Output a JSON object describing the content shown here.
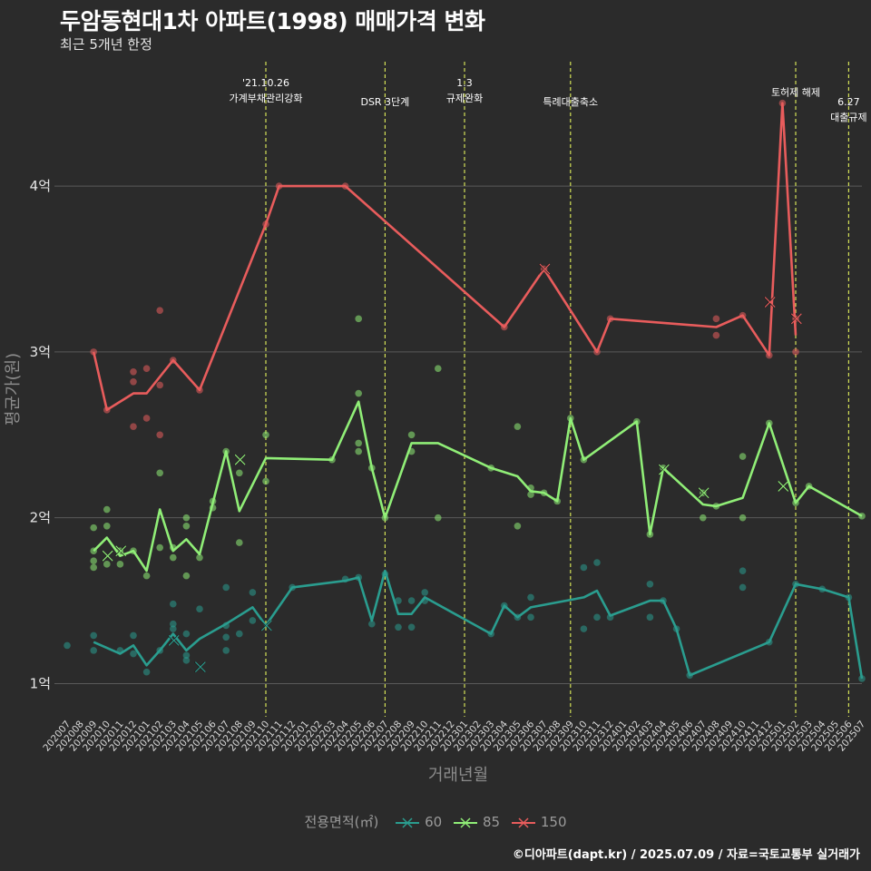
{
  "title": "두암동현대1차 아파트(1998) 매매가격 변화",
  "subtitle": "최근 5개년 한정",
  "caption": "©디아파트(dapt.kr) / 2025.07.09 / 자료=국토교통부 실거래가",
  "colors": {
    "background": "#2b2b2b",
    "grid": "#5a5a5a",
    "vline": "#d4e157",
    "s60": "#2a9d8f",
    "s85": "#90ee77",
    "s150": "#e85c5c"
  },
  "legend": {
    "title": "전용면적(㎡)",
    "items": [
      {
        "label": "60",
        "color": "#2a9d8f"
      },
      {
        "label": "85",
        "color": "#90ee77"
      },
      {
        "label": "150",
        "color": "#e85c5c"
      }
    ]
  },
  "chart_data": {
    "type": "line",
    "xlabel": "거래년월",
    "ylabel": "평균가(원)",
    "x_categories": [
      "202007",
      "202008",
      "202009",
      "202010",
      "202011",
      "202012",
      "202101",
      "202102",
      "202103",
      "202104",
      "202105",
      "202106",
      "202107",
      "202108",
      "202109",
      "202110",
      "202111",
      "202112",
      "202201",
      "202202",
      "202203",
      "202204",
      "202205",
      "202206",
      "202207",
      "202208",
      "202209",
      "202210",
      "202211",
      "202212",
      "202301",
      "202302",
      "202303",
      "202304",
      "202305",
      "202306",
      "202307",
      "202308",
      "202309",
      "202310",
      "202311",
      "202312",
      "202401",
      "202402",
      "202403",
      "202404",
      "202405",
      "202406",
      "202407",
      "202408",
      "202409",
      "202410",
      "202411",
      "202412",
      "202501",
      "202502",
      "202503",
      "202504",
      "202505",
      "202506",
      "202507"
    ],
    "y_ticks": [
      {
        "v": 1,
        "label": "1억"
      },
      {
        "v": 2,
        "label": "2억"
      },
      {
        "v": 3,
        "label": "3억"
      },
      {
        "v": 4,
        "label": "4억"
      }
    ],
    "ylim": [
      0.8,
      4.75
    ],
    "grid": true,
    "legend_position": "bottom",
    "events": [
      {
        "x": "202110",
        "lines": [
          "'21.10.26",
          "가계부채관리강화"
        ],
        "level": 0
      },
      {
        "x": "202207",
        "lines": [
          "DSR 3단계"
        ],
        "level": 1
      },
      {
        "x": "202301",
        "lines": [
          "1.3",
          "규제완화"
        ],
        "level": 0
      },
      {
        "x": "202309",
        "lines": [
          "특례대출축소"
        ],
        "level": 1
      },
      {
        "x": "202502",
        "lines": [
          "토허제 해제"
        ],
        "level": 0.5
      },
      {
        "x": "202506",
        "lines": [
          "6.27",
          "대출규제"
        ],
        "level": 1
      }
    ],
    "series": [
      {
        "name": "60",
        "color": "#2a9d8f",
        "line": [
          [
            "202009",
            1.25
          ],
          [
            "202011",
            1.18
          ],
          [
            "202012",
            1.23
          ],
          [
            "202101",
            1.11
          ],
          [
            "202102",
            1.2
          ],
          [
            "202103",
            1.3
          ],
          [
            "202104",
            1.2
          ],
          [
            "202105",
            1.27
          ],
          [
            "202107",
            1.36
          ],
          [
            "202109",
            1.46
          ],
          [
            "202110",
            1.35
          ],
          [
            "202112",
            1.58
          ],
          [
            "202204",
            1.62
          ],
          [
            "202205",
            1.64
          ],
          [
            "202206",
            1.38
          ],
          [
            "202207",
            1.68
          ],
          [
            "202208",
            1.42
          ],
          [
            "202209",
            1.42
          ],
          [
            "202210",
            1.52
          ],
          [
            "202303",
            1.3
          ],
          [
            "202304",
            1.47
          ],
          [
            "202305",
            1.4
          ],
          [
            "202306",
            1.46
          ],
          [
            "202310",
            1.52
          ],
          [
            "202311",
            1.56
          ],
          [
            "202312",
            1.41
          ],
          [
            "202403",
            1.5
          ],
          [
            "202404",
            1.5
          ],
          [
            "202405",
            1.33
          ],
          [
            "202406",
            1.05
          ],
          [
            "202412",
            1.25
          ],
          [
            "202502",
            1.6
          ],
          [
            "202504",
            1.57
          ],
          [
            "202506",
            1.52
          ],
          [
            "202507",
            1.03
          ]
        ],
        "points": [
          [
            "202007",
            1.23
          ],
          [
            "202009",
            1.29
          ],
          [
            "202009",
            1.2
          ],
          [
            "202011",
            1.2
          ],
          [
            "202012",
            1.29
          ],
          [
            "202012",
            1.18
          ],
          [
            "202101",
            1.07
          ],
          [
            "202102",
            1.2
          ],
          [
            "202103",
            1.36
          ],
          [
            "202103",
            1.48
          ],
          [
            "202103",
            1.33
          ],
          [
            "202104",
            1.17
          ],
          [
            "202104",
            1.3
          ],
          [
            "202104",
            1.14
          ],
          [
            "202105",
            1.45
          ],
          [
            "202107",
            1.58
          ],
          [
            "202107",
            1.35
          ],
          [
            "202107",
            1.28
          ],
          [
            "202107",
            1.2
          ],
          [
            "202108",
            1.3
          ],
          [
            "202109",
            1.55
          ],
          [
            "202109",
            1.38
          ],
          [
            "202112",
            1.58
          ],
          [
            "202204",
            1.63
          ],
          [
            "202205",
            1.64
          ],
          [
            "202206",
            1.36
          ],
          [
            "202207",
            1.66
          ],
          [
            "202208",
            1.5
          ],
          [
            "202208",
            1.34
          ],
          [
            "202209",
            1.5
          ],
          [
            "202209",
            1.34
          ],
          [
            "202210",
            1.55
          ],
          [
            "202210",
            1.5
          ],
          [
            "202303",
            1.3
          ],
          [
            "202304",
            1.47
          ],
          [
            "202305",
            1.4
          ],
          [
            "202306",
            1.52
          ],
          [
            "202306",
            1.4
          ],
          [
            "202310",
            1.7
          ],
          [
            "202310",
            1.33
          ],
          [
            "202311",
            1.73
          ],
          [
            "202311",
            1.4
          ],
          [
            "202312",
            1.4
          ],
          [
            "202403",
            1.6
          ],
          [
            "202403",
            1.4
          ],
          [
            "202404",
            1.5
          ],
          [
            "202405",
            1.33
          ],
          [
            "202406",
            1.05
          ],
          [
            "202410",
            1.68
          ],
          [
            "202410",
            1.58
          ],
          [
            "202412",
            1.25
          ],
          [
            "202502",
            1.6
          ],
          [
            "202504",
            1.57
          ],
          [
            "202506",
            1.52
          ],
          [
            "202507",
            1.03
          ]
        ],
        "markers": [
          [
            "202103",
            1.26
          ],
          [
            "202105",
            1.1
          ],
          [
            "202110",
            1.35
          ]
        ]
      },
      {
        "name": "85",
        "color": "#90ee77",
        "line": [
          [
            "202009",
            1.8
          ],
          [
            "202010",
            1.88
          ],
          [
            "202011",
            1.77
          ],
          [
            "202012",
            1.8
          ],
          [
            "202101",
            1.68
          ],
          [
            "202102",
            2.05
          ],
          [
            "202103",
            1.8
          ],
          [
            "202104",
            1.87
          ],
          [
            "202105",
            1.78
          ],
          [
            "202107",
            2.4
          ],
          [
            "202108",
            2.04
          ],
          [
            "202110",
            2.36
          ],
          [
            "202203",
            2.35
          ],
          [
            "202205",
            2.7
          ],
          [
            "202206",
            2.3
          ],
          [
            "202207",
            2.0
          ],
          [
            "202209",
            2.45
          ],
          [
            "202211",
            2.45
          ],
          [
            "202303",
            2.3
          ],
          [
            "202305",
            2.25
          ],
          [
            "202306",
            2.16
          ],
          [
            "202307",
            2.15
          ],
          [
            "202308",
            2.1
          ],
          [
            "202309",
            2.6
          ],
          [
            "202310",
            2.35
          ],
          [
            "202402",
            2.58
          ],
          [
            "202403",
            1.9
          ],
          [
            "202404",
            2.3
          ],
          [
            "202407",
            2.08
          ],
          [
            "202408",
            2.07
          ],
          [
            "202410",
            2.12
          ],
          [
            "202412",
            2.57
          ],
          [
            "202502",
            2.09
          ],
          [
            "202503",
            2.19
          ],
          [
            "202507",
            2.01
          ]
        ],
        "points": [
          [
            "202009",
            1.94
          ],
          [
            "202009",
            1.8
          ],
          [
            "202009",
            1.74
          ],
          [
            "202009",
            1.7
          ],
          [
            "202010",
            2.05
          ],
          [
            "202010",
            1.95
          ],
          [
            "202010",
            1.72
          ],
          [
            "202011",
            1.8
          ],
          [
            "202011",
            1.72
          ],
          [
            "202012",
            1.8
          ],
          [
            "202101",
            1.65
          ],
          [
            "202102",
            2.27
          ],
          [
            "202102",
            1.82
          ],
          [
            "202103",
            1.82
          ],
          [
            "202103",
            1.76
          ],
          [
            "202104",
            2.0
          ],
          [
            "202104",
            1.95
          ],
          [
            "202104",
            1.65
          ],
          [
            "202105",
            1.76
          ],
          [
            "202106",
            2.1
          ],
          [
            "202106",
            2.06
          ],
          [
            "202107",
            2.4
          ],
          [
            "202108",
            2.27
          ],
          [
            "202108",
            1.85
          ],
          [
            "202110",
            2.5
          ],
          [
            "202110",
            2.22
          ],
          [
            "202203",
            2.35
          ],
          [
            "202205",
            3.2
          ],
          [
            "202205",
            2.75
          ],
          [
            "202205",
            2.45
          ],
          [
            "202205",
            2.4
          ],
          [
            "202206",
            2.3
          ],
          [
            "202207",
            2.0
          ],
          [
            "202209",
            2.5
          ],
          [
            "202209",
            2.4
          ],
          [
            "202211",
            2.9
          ],
          [
            "202211",
            2.0
          ],
          [
            "202303",
            2.3
          ],
          [
            "202305",
            2.55
          ],
          [
            "202305",
            1.95
          ],
          [
            "202306",
            2.18
          ],
          [
            "202306",
            2.14
          ],
          [
            "202307",
            2.15
          ],
          [
            "202308",
            2.1
          ],
          [
            "202309",
            2.6
          ],
          [
            "202310",
            2.35
          ],
          [
            "202402",
            2.58
          ],
          [
            "202403",
            1.9
          ],
          [
            "202404",
            2.3
          ],
          [
            "202407",
            2.15
          ],
          [
            "202407",
            2.0
          ],
          [
            "202408",
            2.07
          ],
          [
            "202410",
            2.37
          ],
          [
            "202410",
            2.0
          ],
          [
            "202412",
            2.57
          ],
          [
            "202502",
            2.09
          ],
          [
            "202503",
            2.19
          ],
          [
            "202507",
            2.01
          ]
        ],
        "markers": [
          [
            "202010",
            1.77
          ],
          [
            "202011",
            1.8
          ],
          [
            "202108",
            2.35
          ],
          [
            "202404",
            2.29
          ],
          [
            "202407",
            2.15
          ],
          [
            "202501",
            2.19
          ]
        ]
      },
      {
        "name": "150",
        "color": "#e85c5c",
        "line": [
          [
            "202009",
            3.0
          ],
          [
            "202010",
            2.65
          ],
          [
            "202012",
            2.75
          ],
          [
            "202101",
            2.75
          ],
          [
            "202103",
            2.95
          ],
          [
            "202105",
            2.77
          ],
          [
            "202110",
            3.77
          ],
          [
            "202111",
            4.0
          ],
          [
            "202204",
            4.0
          ],
          [
            "202304",
            3.15
          ],
          [
            "202307",
            3.5
          ],
          [
            "202311",
            3.0
          ],
          [
            "202312",
            3.2
          ],
          [
            "202408",
            3.15
          ],
          [
            "202410",
            3.22
          ],
          [
            "202412",
            2.98
          ],
          [
            "202501",
            4.5
          ],
          [
            "202502",
            3.1
          ]
        ],
        "points": [
          [
            "202009",
            3.0
          ],
          [
            "202010",
            2.65
          ],
          [
            "202012",
            2.88
          ],
          [
            "202012",
            2.82
          ],
          [
            "202012",
            2.55
          ],
          [
            "202101",
            2.9
          ],
          [
            "202101",
            2.6
          ],
          [
            "202102",
            3.25
          ],
          [
            "202102",
            2.8
          ],
          [
            "202102",
            2.5
          ],
          [
            "202103",
            2.95
          ],
          [
            "202105",
            2.77
          ],
          [
            "202110",
            3.77
          ],
          [
            "202111",
            4.0
          ],
          [
            "202204",
            4.0
          ],
          [
            "202304",
            3.15
          ],
          [
            "202307",
            3.5
          ],
          [
            "202311",
            3.0
          ],
          [
            "202312",
            3.2
          ],
          [
            "202408",
            3.2
          ],
          [
            "202408",
            3.1
          ],
          [
            "202410",
            3.22
          ],
          [
            "202412",
            2.98
          ],
          [
            "202501",
            4.5
          ],
          [
            "202502",
            3.2
          ],
          [
            "202502",
            3.0
          ]
        ],
        "markers": [
          [
            "202307",
            3.5
          ],
          [
            "202412",
            3.3
          ],
          [
            "202502",
            3.2
          ]
        ]
      }
    ]
  }
}
